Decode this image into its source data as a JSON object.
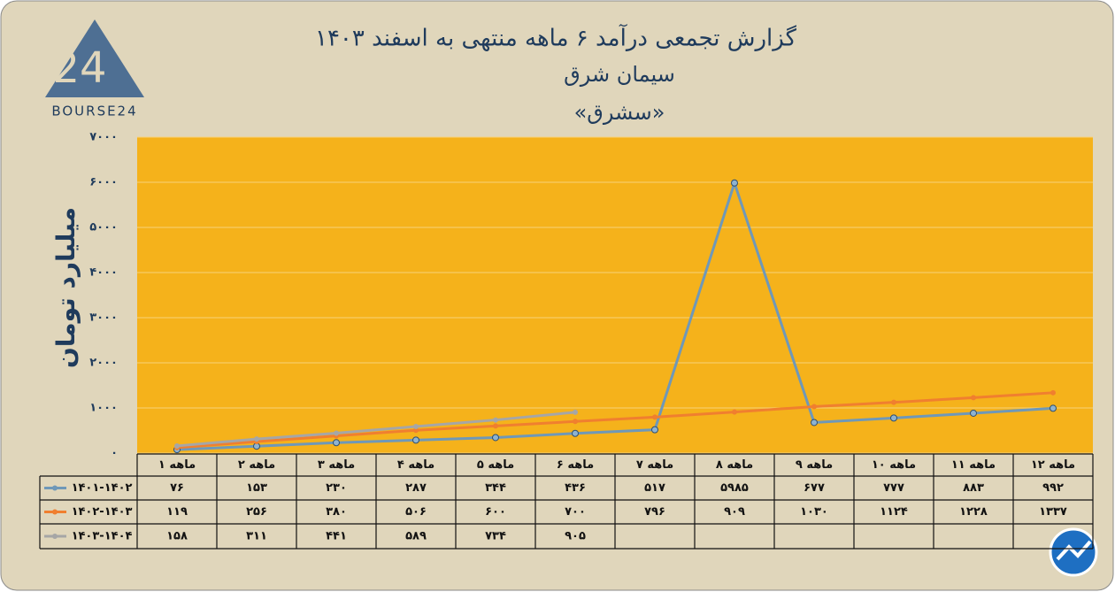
{
  "chart_data": {
    "type": "line",
    "title": "گزارش تجمعی درآمد ۶ ماهه منتهی به اسفند ۱۴۰۳",
    "subtitle": "سیمان شرق",
    "symbol": "«سشرق»",
    "logo": "BOURSE24",
    "ylabel": "میلیارد تومان",
    "categories": [
      "۱ ماهه",
      "۲ ماهه",
      "۳ ماهه",
      "۴ ماهه",
      "۵ ماهه",
      "۶ ماهه",
      "۷ ماهه",
      "۸ ماهه",
      "۹ ماهه",
      "۱۰ ماهه",
      "۱۱ ماهه",
      "۱۲ ماهه"
    ],
    "series": [
      {
        "name": "۱۴۰۱-۱۴۰۲",
        "color": "#6f98b8",
        "values": [
          76,
          153,
          230,
          287,
          344,
          436,
          517,
          5985,
          677,
          777,
          883,
          992
        ],
        "value_labels": [
          "۷۶",
          "۱۵۳",
          "۲۳۰",
          "۲۸۷",
          "۳۴۴",
          "۴۳۶",
          "۵۱۷",
          "۵۹۸۵",
          "۶۷۷",
          "۷۷۷",
          "۸۸۳",
          "۹۹۲"
        ]
      },
      {
        "name": "۱۴۰۲-۱۴۰۳",
        "color": "#f07f2f",
        "values": [
          119,
          256,
          380,
          506,
          600,
          700,
          796,
          909,
          1030,
          1124,
          1228,
          1337
        ],
        "value_labels": [
          "۱۱۹",
          "۲۵۶",
          "۳۸۰",
          "۵۰۶",
          "۶۰۰",
          "۷۰۰",
          "۷۹۶",
          "۹۰۹",
          "۱۰۳۰",
          "۱۱۲۴",
          "۱۲۲۸",
          "۱۳۳۷"
        ]
      },
      {
        "name": "۱۴۰۳-۱۴۰۴",
        "color": "#a6a6a6",
        "values": [
          158,
          311,
          441,
          589,
          734,
          905,
          null,
          null,
          null,
          null,
          null,
          null
        ],
        "value_labels": [
          "۱۵۸",
          "۳۱۱",
          "۴۴۱",
          "۵۸۹",
          "۷۳۴",
          "۹۰۵",
          null,
          null,
          null,
          null,
          null,
          null
        ]
      }
    ],
    "ylim": [
      0,
      7000
    ],
    "yticks": [
      {
        "value": 0,
        "label": "۰"
      },
      {
        "value": 1000,
        "label": "۱۰۰۰"
      },
      {
        "value": 2000,
        "label": "۲۰۰۰"
      },
      {
        "value": 3000,
        "label": "۳۰۰۰"
      },
      {
        "value": 4000,
        "label": "۴۰۰۰"
      },
      {
        "value": 5000,
        "label": "۵۰۰۰"
      },
      {
        "value": 6000,
        "label": "۶۰۰۰"
      },
      {
        "value": 7000,
        "label": "۷۰۰۰"
      }
    ],
    "grid": true,
    "plot_color": "#f5b21b"
  }
}
